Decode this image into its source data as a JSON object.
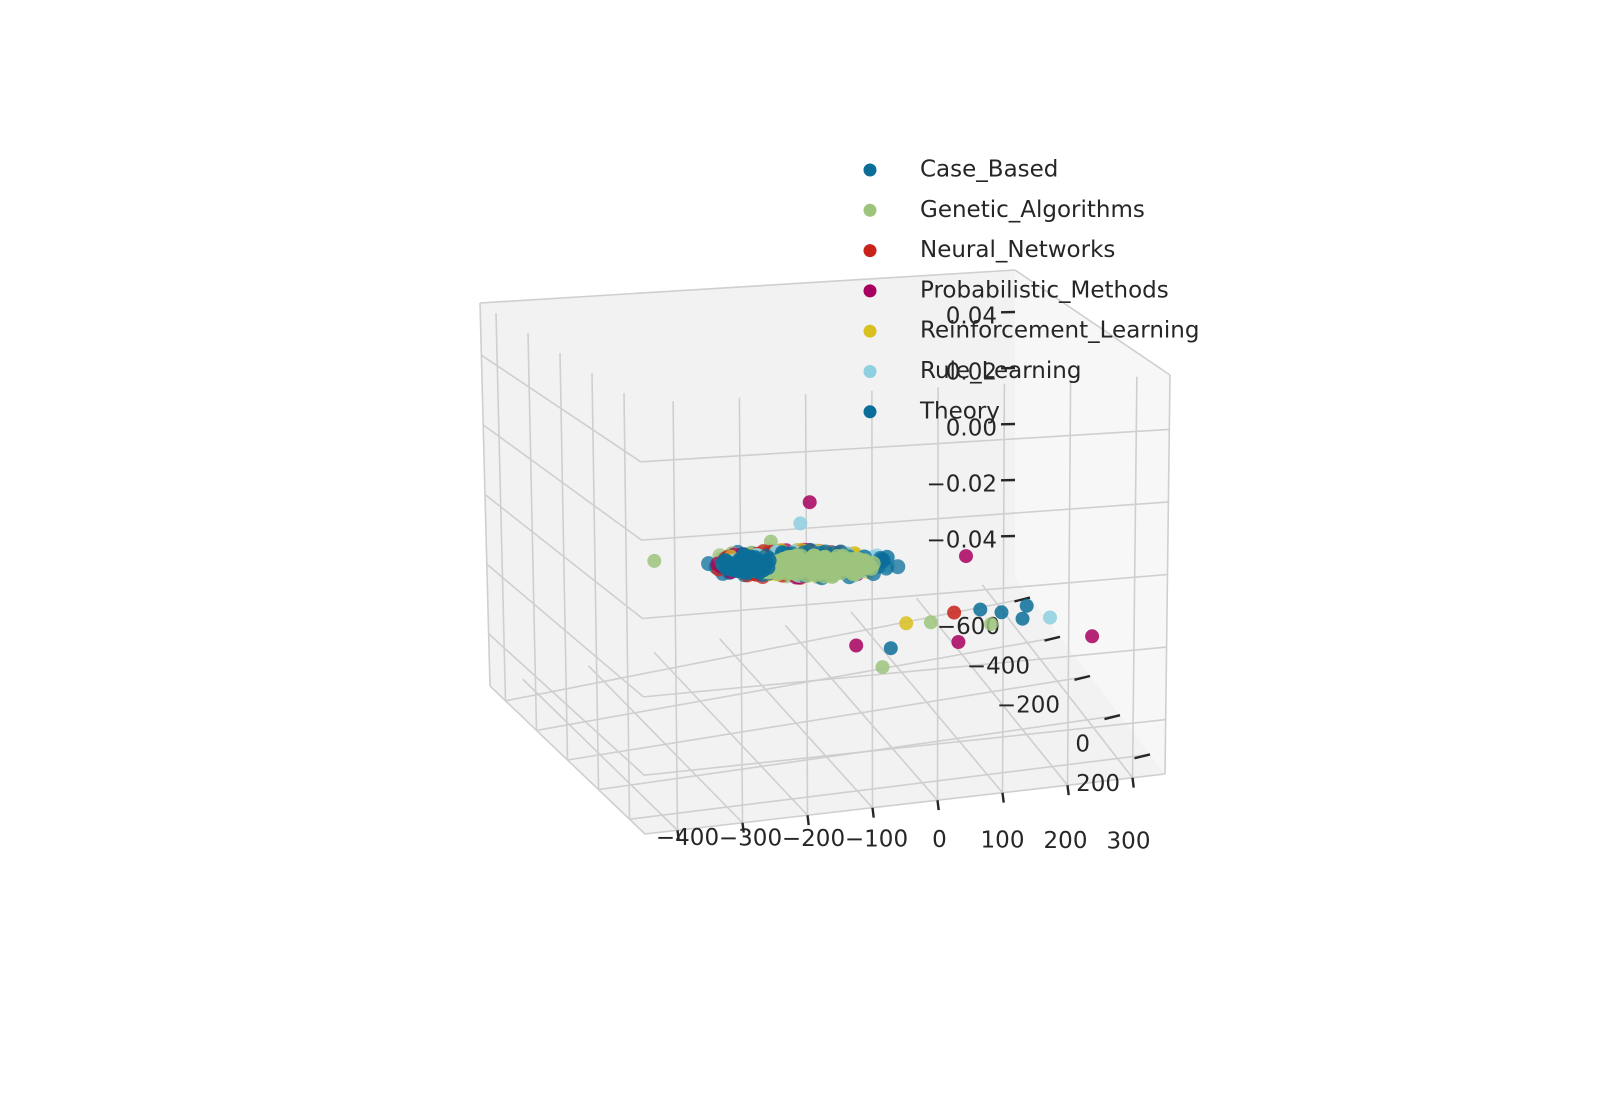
{
  "chart_data": {
    "type": "scatter",
    "projection": "3d",
    "title": "",
    "xlabel": "",
    "ylabel": "",
    "zlabel": "",
    "grid": true,
    "legend_placement": "top-right",
    "axes": {
      "x": {
        "ticks": [
          300,
          200,
          100,
          0,
          -100,
          -200,
          -300,
          -400
        ],
        "tick_labels": [
          "300",
          "200",
          "100",
          "0",
          "−100",
          "−200",
          "−300",
          "−400"
        ],
        "range": [
          -450,
          350
        ]
      },
      "y": {
        "ticks": [
          -600,
          -400,
          -200,
          0,
          200
        ],
        "tick_labels": [
          "−600",
          "−400",
          "−200",
          "0",
          "200"
        ],
        "range": [
          -700,
          300
        ]
      },
      "z": {
        "ticks": [
          -0.04,
          -0.02,
          0.0,
          0.02,
          0.04
        ],
        "tick_labels": [
          "−0.04",
          "−0.02",
          "0.00",
          "0.02",
          "0.04"
        ],
        "range": [
          -0.055,
          0.055
        ]
      }
    },
    "series": [
      {
        "name": "Case_Based",
        "color": "#0b6e99",
        "points": [
          [
            213,
            -30,
            -0.021
          ],
          [
            140,
            -20,
            -0.02
          ],
          [
            -6,
            20,
            -0.026
          ]
        ]
      },
      {
        "name": "Genetic_Algorithms",
        "color": "#9dc47c",
        "points": [
          [
            140,
            50,
            -0.021
          ],
          [
            60,
            0,
            -0.021
          ],
          [
            -14,
            0,
            -0.032
          ],
          [
            -50,
            -570,
            -0.02
          ],
          [
            -220,
            -600,
            -0.022
          ]
        ]
      },
      {
        "name": "Neural_Networks",
        "color": "#c8221a",
        "points": [
          [
            100,
            -20,
            -0.02
          ],
          [
            -40,
            -300,
            -0.016
          ]
        ]
      },
      {
        "name": "Probabilistic_Methods",
        "color": "#a8005e",
        "points": [
          [
            250,
            240,
            -0.018
          ],
          [
            160,
            -200,
            -0.013
          ],
          [
            95,
            30,
            -0.026
          ],
          [
            -40,
            -60,
            -0.028
          ],
          [
            -30,
            -400,
            -0.001
          ]
        ]
      },
      {
        "name": "Reinforcement_Learning",
        "color": "#d8c020",
        "points": [
          [
            20,
            10,
            -0.02
          ]
        ]
      },
      {
        "name": "Rule_Learning",
        "color": "#8ecfe0",
        "points": [
          [
            230,
            50,
            -0.021
          ],
          [
            -40,
            -420,
            -0.008
          ]
        ]
      },
      {
        "name": "Theory",
        "color": "#0b6e99",
        "points": [
          [
            195,
            20,
            -0.022
          ],
          [
            170,
            -10,
            -0.021
          ]
        ]
      }
    ]
  }
}
